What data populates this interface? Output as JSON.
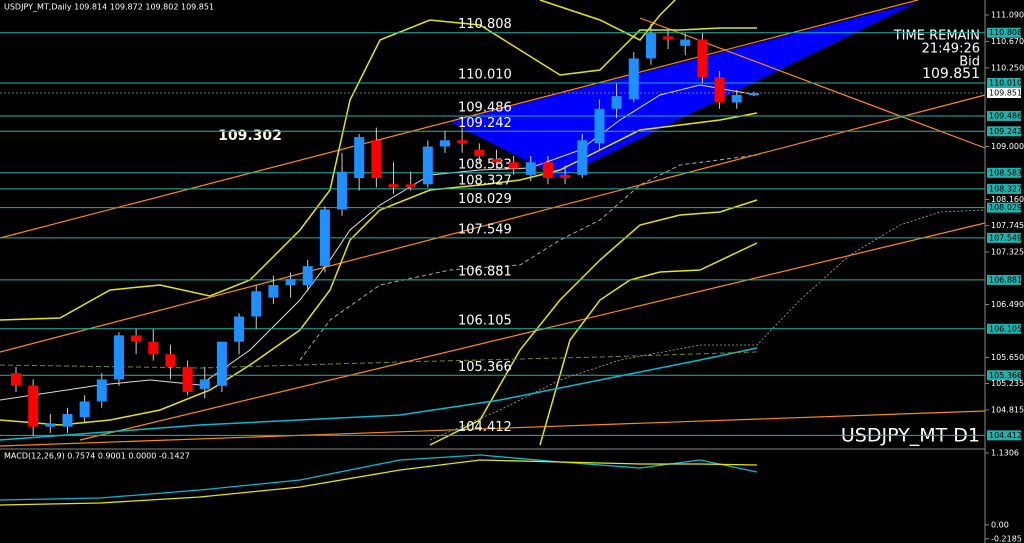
{
  "header": "USDJPY_MT,Daily  109.814 109.872 109.802 109.851",
  "chart_data": {
    "type": "candlestick",
    "ylim": [
      104.211,
      111.328
    ],
    "yticks": [
      {
        "value": 111.09,
        "label": "111.090"
      },
      {
        "value": 110.67,
        "label": "110.670"
      },
      {
        "value": 110.25,
        "label": "110.250"
      },
      {
        "value": 109.0,
        "label": "109.000"
      },
      {
        "value": 108.16,
        "label": "108.160"
      },
      107.745,
      107.325,
      {
        "value": 106.49,
        "label": "106.490"
      },
      {
        "value": 105.65,
        "label": "105.650"
      },
      105.235,
      104.815
    ],
    "up_color": "#1e90ff",
    "down_color": "#ff0000",
    "open": [
      105.4,
      105.2,
      104.55,
      104.55,
      104.7,
      104.95,
      105.3,
      106.0,
      105.9,
      105.7,
      105.5,
      105.15,
      105.2,
      105.9,
      106.3,
      106.6,
      106.8,
      106.8,
      107.1,
      108.0,
      108.5,
      109.1,
      108.4,
      108.4,
      108.4,
      109.0,
      109.1,
      108.95,
      108.8,
      108.75,
      108.55,
      108.75,
      108.55,
      108.55,
      109.05,
      109.6,
      109.75,
      110.4,
      110.75,
      110.6,
      110.7,
      110.1,
      109.7,
      109.814
    ],
    "high": [
      105.5,
      105.3,
      104.75,
      104.85,
      105.05,
      105.4,
      106.05,
      106.1,
      106.1,
      105.85,
      105.6,
      105.5,
      105.9,
      106.35,
      106.8,
      106.95,
      107.0,
      107.2,
      108.05,
      108.9,
      109.2,
      109.3,
      108.75,
      108.6,
      109.1,
      109.25,
      109.3,
      109.05,
      108.95,
      108.85,
      108.85,
      108.85,
      108.7,
      109.2,
      109.75,
      110.0,
      110.5,
      110.95,
      110.85,
      110.8,
      110.8,
      110.2,
      109.9,
      109.872
    ],
    "low": [
      105.1,
      104.4,
      104.45,
      104.45,
      104.6,
      104.85,
      105.2,
      105.7,
      105.6,
      105.3,
      105.05,
      105.0,
      105.1,
      105.7,
      106.1,
      106.5,
      106.6,
      106.7,
      107.0,
      107.9,
      108.3,
      108.35,
      108.25,
      108.3,
      108.35,
      108.9,
      108.9,
      108.75,
      108.65,
      108.55,
      108.45,
      108.4,
      108.4,
      108.5,
      108.95,
      109.45,
      109.7,
      110.3,
      110.55,
      110.45,
      110.0,
      109.6,
      109.6,
      109.802
    ],
    "close": [
      105.2,
      104.55,
      104.6,
      104.75,
      104.95,
      105.3,
      106.0,
      105.9,
      105.7,
      105.5,
      105.1,
      105.3,
      105.9,
      106.3,
      106.7,
      106.8,
      106.9,
      107.1,
      108.0,
      108.6,
      109.15,
      108.5,
      108.35,
      108.35,
      109.0,
      109.1,
      109.05,
      108.85,
      108.75,
      108.65,
      108.75,
      108.5,
      108.5,
      109.1,
      109.6,
      109.8,
      110.4,
      110.8,
      110.7,
      110.7,
      110.1,
      109.7,
      109.82,
      109.851
    ],
    "levels": [
      110.808,
      {
        "value": 110.01,
        "label": "110.010"
      },
      109.486,
      109.242,
      108.583,
      108.327,
      108.029,
      107.549,
      106.881,
      106.105,
      105.366,
      104.412
    ],
    "annotation": "109.302",
    "symbol_label": "USDJPY_MT D1",
    "time_remain": {
      "label": "TIME REMAIN",
      "value": "21:49:26"
    },
    "bid": {
      "label": "Bid",
      "value": 109.851
    }
  },
  "macd": {
    "title": "MACD(12,26,9) 0.7574 0.9001 0.0000 -0.1427",
    "ylim": [
      -0.285,
      1.178
    ],
    "yticks": [
      1.1306,
      {
        "value": 0,
        "label": "0.00"
      },
      -0.2185
    ]
  }
}
